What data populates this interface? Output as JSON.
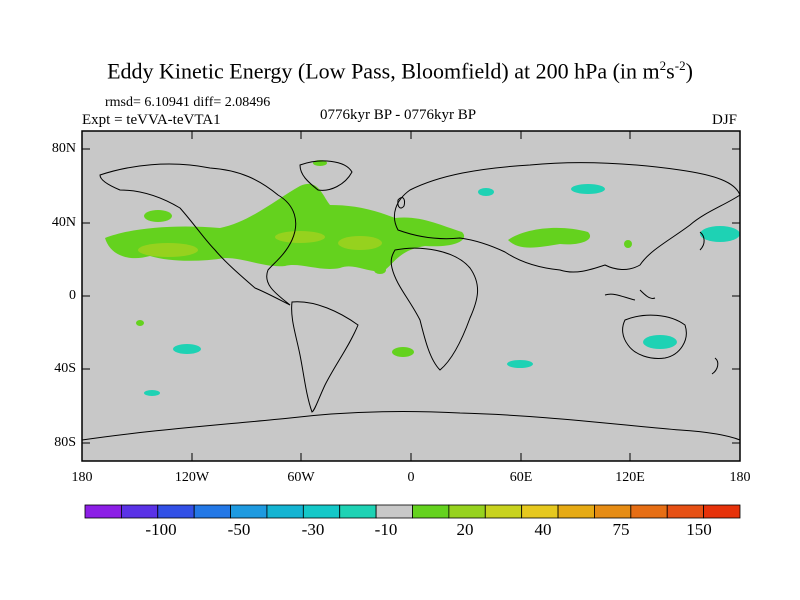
{
  "title": "Eddy Kinetic Energy (Low Pass, Bloomfield) at 200 hPa (in m",
  "title_sup1": "2",
  "title_mid": "s",
  "title_sup2": "-2",
  "title_end": ")",
  "stats": "rmsd= 6.10941 diff= 2.08496",
  "expt": "Expt = teVVA-teVTA1",
  "period": "0776kyr BP - 0776kyr BP",
  "season": "DJF",
  "y_labels": [
    "80N",
    "40N",
    "0",
    "40S",
    "80S"
  ],
  "x_labels": [
    "180",
    "120W",
    "60W",
    "0",
    "60E",
    "120E",
    "180"
  ],
  "colorbar_labels": [
    "-100",
    "-50",
    "-30",
    "-10",
    "20",
    "40",
    "75",
    "150"
  ],
  "colorbar_colors": [
    "#8c1ee6",
    "#5a32e6",
    "#3250e6",
    "#2378e6",
    "#1e9ae0",
    "#14b4d2",
    "#14c8c8",
    "#1ed2b4",
    "#c8c8c8",
    "#64d21e",
    "#96d21e",
    "#c8d21e",
    "#e6c81e",
    "#e6aa14",
    "#e68c14",
    "#e66e14",
    "#e65014",
    "#e6320a"
  ],
  "colors": {
    "land_ocean": "#c8c8c8",
    "positive_low": "#64d21e",
    "positive_mid": "#96d21e",
    "negative": "#1ed2b4"
  }
}
